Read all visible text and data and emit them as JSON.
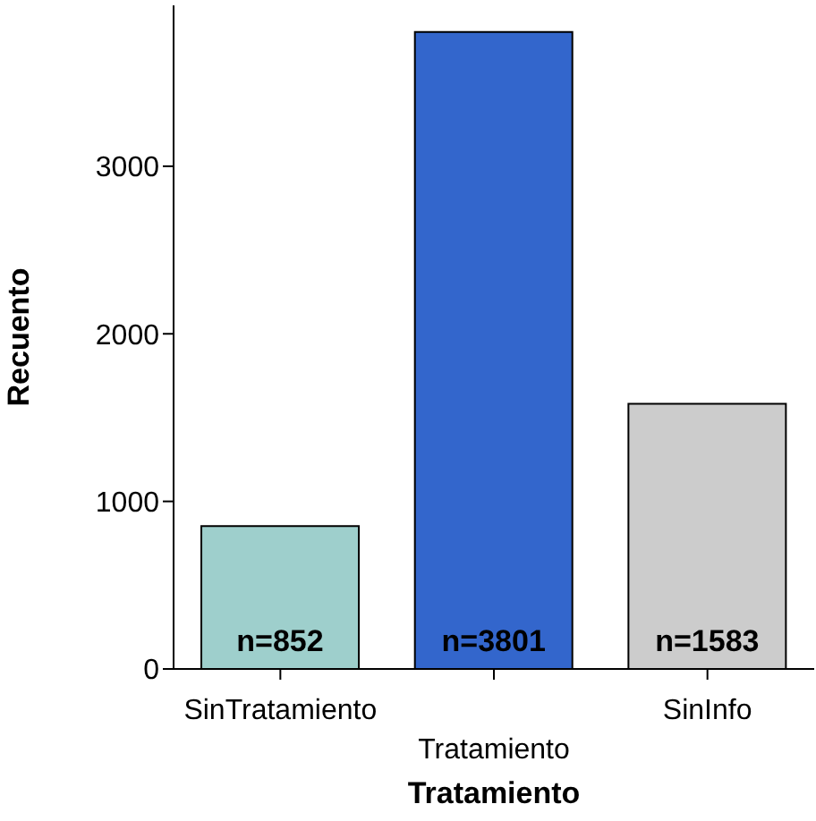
{
  "chart_data": {
    "type": "bar",
    "xlabel": "Tratamiento",
    "ylabel": "Recuento",
    "categories": [
      "SinTratamiento",
      "Tratamiento",
      "SinInfo"
    ],
    "values": [
      852,
      3801,
      1583
    ],
    "colors": [
      "#9ecfcc",
      "#3366cc",
      "#cccccc"
    ],
    "value_labels": [
      "n=852",
      "n=3801",
      "n=1583"
    ],
    "ylim": [
      0,
      3960
    ],
    "yticks": [
      0,
      1000,
      2000,
      3000
    ],
    "grid": false,
    "legend": false
  }
}
